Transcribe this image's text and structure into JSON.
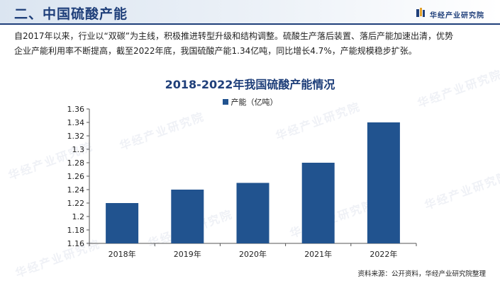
{
  "header": {
    "title": "二、中国硫酸产能",
    "brand": "华经产业研究院"
  },
  "intro": {
    "line1": "自2017年以来，行业以“双碳”为主线，积极推进转型升级和结构调整。硫酸生产落后装置、落后产能加速出清，优势",
    "line2": "企业产能利用率不断提高，截至2022年底，我国硫酸产能1.34亿吨，同比增长4.7%，产能规模稳步扩张。"
  },
  "chart_data": {
    "type": "bar",
    "title": "2018-2022年我国硫酸产能情况",
    "categories": [
      "2018年",
      "2019年",
      "2020年",
      "2021年",
      "2022年"
    ],
    "series": [
      {
        "name": "产能（亿吨）",
        "values": [
          1.22,
          1.24,
          1.25,
          1.28,
          1.34
        ]
      }
    ],
    "ylim": [
      1.16,
      1.36
    ],
    "yticks": [
      "1.16",
      "1.18",
      "1.2",
      "1.22",
      "1.24",
      "1.26",
      "1.28",
      "1.3",
      "1.32",
      "1.34",
      "1.36"
    ],
    "xlabel": "",
    "ylabel": "",
    "legend_position": "top-center",
    "grid": false,
    "bar_color": "#21538f"
  },
  "source": "资料来源：公开资料，华经产业研究院整理"
}
